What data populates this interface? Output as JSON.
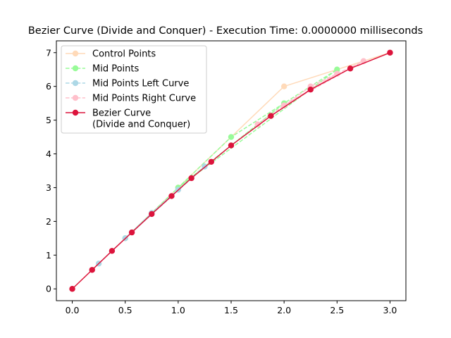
{
  "chart_data": {
    "type": "line",
    "title": "Bezier Curve (Divide and Conquer) - Execution Time: 0.0000000 milliseconds",
    "xlabel": "",
    "ylabel": "",
    "xlim": [
      -0.15,
      3.15
    ],
    "ylim": [
      -0.35,
      7.35
    ],
    "x_ticks": [
      0.0,
      0.5,
      1.0,
      1.5,
      2.0,
      2.5,
      3.0
    ],
    "x_tick_labels": [
      "0.0",
      "0.5",
      "1.0",
      "1.5",
      "2.0",
      "2.5",
      "3.0"
    ],
    "y_ticks": [
      0,
      1,
      2,
      3,
      4,
      5,
      6,
      7
    ],
    "y_tick_labels": [
      "0",
      "1",
      "2",
      "3",
      "4",
      "5",
      "6",
      "7"
    ],
    "grid": false,
    "legend_position": "upper-left",
    "series": [
      {
        "name": "Control Points",
        "color": "#ffdab9",
        "line_style": "solid",
        "marker": "circle",
        "points": [
          [
            0,
            0
          ],
          [
            1,
            3
          ],
          [
            2,
            6
          ],
          [
            3,
            7
          ]
        ]
      },
      {
        "name": "Mid Points",
        "color": "#98fb98",
        "line_style": "dashed",
        "marker": "circle",
        "points": [
          [
            0.5,
            1.5
          ],
          [
            1.5,
            4.5
          ],
          [
            2.5,
            6.5
          ],
          [
            1.0,
            3.0
          ],
          [
            2.0,
            5.5
          ],
          [
            1.5,
            4.25
          ]
        ]
      },
      {
        "name": "Mid Points Left Curve",
        "color": "#add8e6",
        "line_style": "dashed",
        "marker": "circle",
        "points": [
          [
            0.25,
            0.75
          ],
          [
            0.75,
            2.25
          ],
          [
            1.25,
            3.625
          ],
          [
            0.5,
            1.5
          ],
          [
            1.0,
            2.9375
          ],
          [
            0.75,
            2.21875
          ]
        ]
      },
      {
        "name": "Mid Points Right Curve",
        "color": "#ffc0cb",
        "line_style": "dashed",
        "marker": "circle",
        "points": [
          [
            1.75,
            4.875
          ],
          [
            2.25,
            6.0
          ],
          [
            2.75,
            6.75
          ],
          [
            2.0,
            5.4375
          ],
          [
            2.5,
            6.375
          ],
          [
            2.25,
            5.90625
          ]
        ]
      },
      {
        "name": "Bezier Curve\n(Divide and Conquer)",
        "color": "#dc143c",
        "line_style": "solid",
        "marker": "circle",
        "points": [
          [
            0,
            0
          ],
          [
            0.1875,
            0.5625
          ],
          [
            0.375,
            1.125
          ],
          [
            0.5625,
            1.6719
          ],
          [
            0.75,
            2.21875
          ],
          [
            0.9375,
            2.75
          ],
          [
            1.125,
            3.28125
          ],
          [
            1.3125,
            3.7656
          ],
          [
            1.5,
            4.25
          ],
          [
            1.875,
            5.125
          ],
          [
            2.25,
            5.90625
          ],
          [
            2.625,
            6.5312
          ],
          [
            3,
            7
          ]
        ]
      }
    ]
  }
}
